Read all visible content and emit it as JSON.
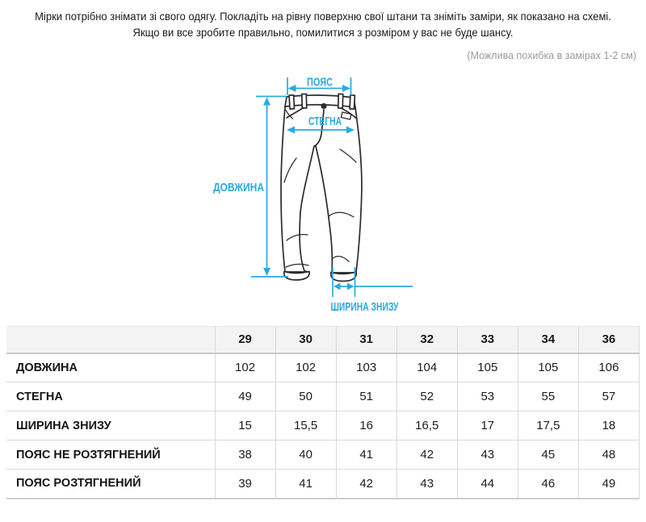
{
  "intro": {
    "line1": "Мірки потрібно знімати зі свого одягу. Покладіть на рівну поверхню свої штани та зніміть заміри, як показано на схемі.",
    "line2": "Якщо ви все зробите правильно, помилитися з розміром у вас не буде шансу."
  },
  "note": "(Можлива похибка в замірах 1-2 см)",
  "diagram": {
    "accent_color": "#2aa9e0",
    "outline_color": "#2b2b2b",
    "labels": {
      "waist": "ПОЯС",
      "hips": "СТЕГНА",
      "length": "ДОВЖИНА",
      "bottom_width": "ШИРИНА ЗНИЗУ"
    }
  },
  "table": {
    "columns": [
      "29",
      "30",
      "31",
      "32",
      "33",
      "34",
      "36"
    ],
    "rows": [
      {
        "label": "ДОВЖИНА",
        "values": [
          "102",
          "102",
          "103",
          "104",
          "105",
          "105",
          "106"
        ]
      },
      {
        "label": "СТЕГНА",
        "values": [
          "49",
          "50",
          "51",
          "52",
          "53",
          "55",
          "57"
        ]
      },
      {
        "label": "ШИРИНА ЗНИЗУ",
        "values": [
          "15",
          "15,5",
          "16",
          "16,5",
          "17",
          "17,5",
          "18"
        ]
      },
      {
        "label": "ПОЯС НЕ РОЗТЯГНЕНИЙ",
        "values": [
          "38",
          "40",
          "41",
          "42",
          "43",
          "45",
          "48"
        ]
      },
      {
        "label": "ПОЯС РОЗТЯГНЕНИЙ",
        "values": [
          "39",
          "41",
          "42",
          "43",
          "44",
          "46",
          "49"
        ]
      }
    ]
  }
}
